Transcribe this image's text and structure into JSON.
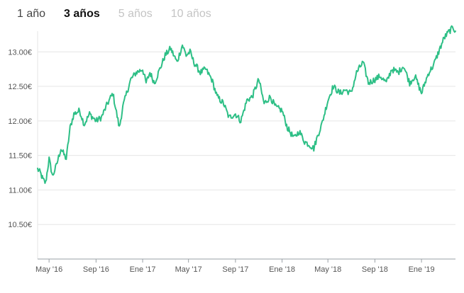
{
  "range_tabs": [
    {
      "label": "1 año",
      "state": "normal"
    },
    {
      "label": "3 años",
      "state": "active"
    },
    {
      "label": "5 años",
      "state": "disabled"
    },
    {
      "label": "10 años",
      "state": "disabled"
    }
  ],
  "colors": {
    "line": "#2ebf86",
    "grid": "#e6e6e6",
    "axis": "#9aa0a6"
  },
  "chart_data": {
    "type": "line",
    "title": "",
    "xlabel": "",
    "ylabel": "",
    "ylim": [
      10.0,
      13.3
    ],
    "xlim": [
      "2016-04-01",
      "2019-03-31"
    ],
    "grid": true,
    "y_ticks": [
      {
        "value": 10.5,
        "label": "10.50€"
      },
      {
        "value": 11.0,
        "label": "11.00€"
      },
      {
        "value": 11.5,
        "label": "11.50€"
      },
      {
        "value": 12.0,
        "label": "12.00€"
      },
      {
        "value": 12.5,
        "label": "12.50€"
      },
      {
        "value": 13.0,
        "label": "13.00€"
      }
    ],
    "x_ticks": [
      {
        "date": "2016-05-01",
        "label": "May '16"
      },
      {
        "date": "2016-09-01",
        "label": "Sep '16"
      },
      {
        "date": "2017-01-01",
        "label": "Ene '17"
      },
      {
        "date": "2017-05-01",
        "label": "May '17"
      },
      {
        "date": "2017-09-01",
        "label": "Sep '17"
      },
      {
        "date": "2018-01-01",
        "label": "Ene '18"
      },
      {
        "date": "2018-05-01",
        "label": "May '18"
      },
      {
        "date": "2018-09-01",
        "label": "Sep '18"
      },
      {
        "date": "2019-01-01",
        "label": "Ene '19"
      }
    ],
    "series": [
      {
        "x": [
          "2016-04-01",
          "2016-04-08",
          "2016-04-15",
          "2016-04-22",
          "2016-05-01",
          "2016-05-10",
          "2016-05-20",
          "2016-06-01",
          "2016-06-15",
          "2016-06-25",
          "2016-07-05",
          "2016-07-20",
          "2016-08-01",
          "2016-08-15",
          "2016-09-01",
          "2016-09-15",
          "2016-10-01",
          "2016-10-15",
          "2016-11-01",
          "2016-11-10",
          "2016-11-20",
          "2016-12-01",
          "2016-12-15",
          "2017-01-01",
          "2017-01-10",
          "2017-01-20",
          "2017-02-01",
          "2017-02-15",
          "2017-03-01",
          "2017-03-15",
          "2017-04-01",
          "2017-04-15",
          "2017-04-25",
          "2017-05-05",
          "2017-05-15",
          "2017-06-01",
          "2017-06-15",
          "2017-07-01",
          "2017-07-15",
          "2017-08-01",
          "2017-08-15",
          "2017-09-01",
          "2017-09-15",
          "2017-10-01",
          "2017-10-15",
          "2017-11-01",
          "2017-11-15",
          "2017-12-01",
          "2017-12-15",
          "2018-01-01",
          "2018-01-15",
          "2018-02-01",
          "2018-02-15",
          "2018-03-01",
          "2018-03-15",
          "2018-03-25",
          "2018-04-05",
          "2018-04-15",
          "2018-05-01",
          "2018-05-15",
          "2018-06-01",
          "2018-06-15",
          "2018-07-01",
          "2018-07-15",
          "2018-08-01",
          "2018-08-15",
          "2018-09-01",
          "2018-09-15",
          "2018-10-01",
          "2018-10-15",
          "2018-11-01",
          "2018-11-15",
          "2018-12-01",
          "2018-12-15",
          "2019-01-01",
          "2019-01-10",
          "2019-01-20",
          "2019-02-01",
          "2019-02-15",
          "2019-03-01",
          "2019-03-15",
          "2019-03-25",
          "2019-03-31"
        ],
        "values": [
          11.3,
          11.25,
          11.15,
          11.1,
          11.45,
          11.2,
          11.35,
          11.6,
          11.45,
          11.9,
          12.1,
          12.15,
          11.95,
          12.1,
          12.0,
          12.05,
          12.25,
          12.4,
          11.9,
          12.2,
          12.4,
          12.6,
          12.7,
          12.75,
          12.55,
          12.7,
          12.55,
          12.75,
          12.95,
          13.05,
          12.85,
          13.1,
          12.95,
          13.0,
          12.85,
          12.7,
          12.75,
          12.6,
          12.35,
          12.25,
          12.05,
          12.1,
          12.0,
          12.3,
          12.35,
          12.6,
          12.25,
          12.35,
          12.2,
          12.15,
          11.9,
          11.75,
          11.85,
          11.7,
          11.65,
          11.6,
          11.8,
          11.95,
          12.3,
          12.5,
          12.4,
          12.45,
          12.4,
          12.7,
          12.85,
          12.55,
          12.6,
          12.65,
          12.55,
          12.75,
          12.7,
          12.8,
          12.55,
          12.65,
          12.4,
          12.55,
          12.7,
          12.8,
          13.0,
          13.2,
          13.3,
          13.35,
          13.3
        ]
      }
    ]
  }
}
